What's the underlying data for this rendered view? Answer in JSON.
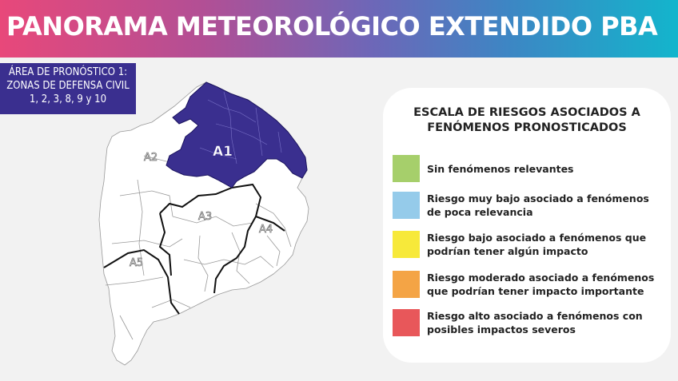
{
  "header": {
    "title": "PANORAMA METEOROLÓGICO EXTENDIDO PBA"
  },
  "area": {
    "line1": "ÁREA DE PRONÓSTICO 1:",
    "line2": "ZONAS DE DEFENSA CIVIL",
    "line3": "1, 2, 3, 8, 9 y 10"
  },
  "map": {
    "label_a1": "A1",
    "label_a2": "A2",
    "label_a3": "A3",
    "label_a4": "A4",
    "label_a5": "A5",
    "highlight_color": "#3a2f8f"
  },
  "scale": {
    "title_line1": "ESCALA DE RIESGOS ASOCIADOS A",
    "title_line2": "FENÓMENOS PRONOSTICADOS",
    "items": [
      {
        "line1": "Sin fenómenos relevantes",
        "line2": "",
        "color": "#a6cf6b"
      },
      {
        "line1": "Riesgo muy bajo asociado a fenómenos",
        "line2": "de poca relevancia",
        "color": "#95cbea"
      },
      {
        "line1": "Riesgo bajo asociado a fenómenos que",
        "line2": "podrían tener algún impacto",
        "color": "#f7e93a"
      },
      {
        "line1": "Riesgo moderado asociado a fenómenos",
        "line2": "que podrían tener impacto importante",
        "color": "#f4a445"
      },
      {
        "line1": "Riesgo alto asociado a fenómenos con",
        "line2": "posibles impactos severos",
        "color": "#e8575a"
      }
    ]
  }
}
